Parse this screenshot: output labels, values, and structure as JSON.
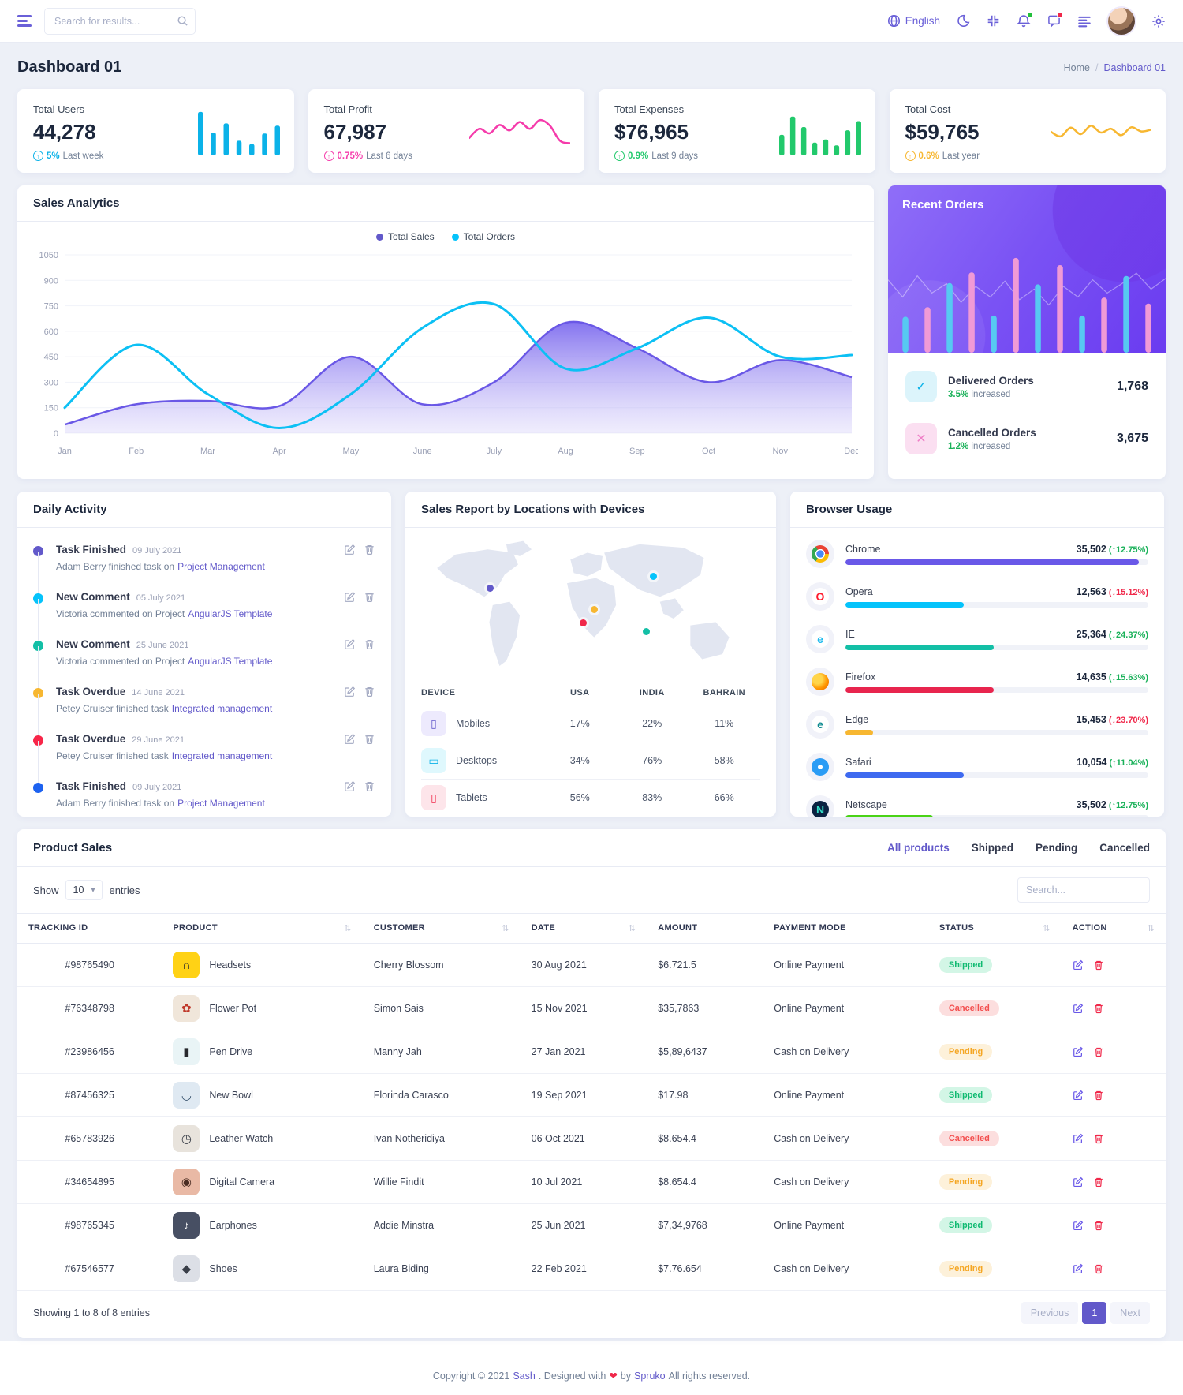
{
  "topbar": {
    "search_placeholder": "Search for results...",
    "language": "English"
  },
  "page_header": {
    "title": "Dashboard 01",
    "breadcrumb_home": "Home",
    "breadcrumb_sep": "/",
    "breadcrumb_current": "Dashboard 01"
  },
  "stat_cards": [
    {
      "label": "Total Users",
      "value": "44,278",
      "arrow": "↑",
      "delta": "5%",
      "note": "Last week",
      "color": "#0bb2e8",
      "chart_data": {
        "type": "bar",
        "values": [
          95,
          50,
          70,
          32,
          25,
          48,
          65
        ]
      }
    },
    {
      "label": "Total Profit",
      "value": "67,987",
      "arrow": "↑",
      "delta": "0.75%",
      "note": "Last 6 days",
      "color": "#f53bab",
      "chart_data": {
        "type": "line",
        "values": [
          38,
          62,
          50,
          72,
          58,
          80,
          62,
          85,
          70,
          30,
          24
        ]
      }
    },
    {
      "label": "Total Expenses",
      "value": "$76,965",
      "arrow": "↑",
      "delta": "0.9%",
      "note": "Last 9 days",
      "color": "#22c96c",
      "chart_data": {
        "type": "bar",
        "values": [
          45,
          85,
          62,
          28,
          35,
          22,
          55,
          75
        ]
      }
    },
    {
      "label": "Total Cost",
      "value": "$59,765",
      "arrow": "↑",
      "delta": "0.6%",
      "note": "Last year",
      "color": "#f7b731",
      "chart_data": {
        "type": "line",
        "values": [
          55,
          42,
          65,
          48,
          70,
          52,
          62,
          45,
          66,
          55,
          60
        ]
      }
    }
  ],
  "sales_analytics": {
    "title": "Sales Analytics",
    "legend": [
      {
        "label": "Total Sales",
        "color": "#6259ca"
      },
      {
        "label": "Total Orders",
        "color": "#05c3fb"
      }
    ],
    "chart_data": {
      "type": "area",
      "categories": [
        "Jan",
        "Feb",
        "Mar",
        "Apr",
        "May",
        "June",
        "July",
        "Aug",
        "Sep",
        "Oct",
        "Nov",
        "Dec"
      ],
      "series": [
        {
          "name": "Total Sales",
          "color": "#6a58e6",
          "values": [
            50,
            170,
            190,
            160,
            450,
            170,
            300,
            650,
            500,
            300,
            430,
            330
          ]
        },
        {
          "name": "Total Orders",
          "color": "#0cc0f4",
          "values": [
            150,
            520,
            230,
            30,
            230,
            620,
            760,
            380,
            500,
            680,
            450,
            460
          ]
        }
      ],
      "ylim": [
        0,
        1050
      ],
      "yticks": [
        1050,
        900,
        750,
        600,
        450,
        300,
        150,
        0
      ]
    }
  },
  "recent_orders": {
    "title": "Recent Orders",
    "chart_data": {
      "type": "bar",
      "colors": [
        "#57c9f2",
        "#f09ad6"
      ],
      "values": [
        30,
        38,
        58,
        67,
        31,
        79,
        57,
        73,
        31,
        46,
        64,
        41
      ],
      "trend": [
        45,
        58,
        42,
        55,
        48,
        62,
        50,
        58,
        46,
        60,
        52,
        64,
        50,
        58,
        45,
        55,
        48,
        40,
        52,
        44
      ]
    },
    "items": [
      {
        "label": "Delivered Orders",
        "pct": "3.5%",
        "note": "increased",
        "value": "1,768",
        "tile_bg": "#dcf4fb",
        "mark_color": "#0bb2e8",
        "pct_color": "#19b159",
        "mark": "✓"
      },
      {
        "label": "Cancelled Orders",
        "pct": "1.2%",
        "note": "increased",
        "value": "3,675",
        "tile_bg": "#fbdff1",
        "mark_color": "#ef7fc7",
        "pct_color": "#19b159",
        "mark": "✕"
      }
    ]
  },
  "daily_activity": {
    "title": "Daily Activity",
    "items": [
      {
        "dot": "#6259ca",
        "title": "Task Finished",
        "date": "09 July 2021",
        "text": "Adam Berry finished task on",
        "link": "Project Management"
      },
      {
        "dot": "#05c3fb",
        "title": "New Comment",
        "date": "05 July 2021",
        "text": "Victoria commented on Project",
        "link": "AngularJS Template"
      },
      {
        "dot": "#13bfa6",
        "title": "New Comment",
        "date": "25 June 2021",
        "text": "Victoria commented on Project",
        "link": "AngularJS Template"
      },
      {
        "dot": "#f7b731",
        "title": "Task Overdue",
        "date": "14 June 2021",
        "text": "Petey Cruiser finished task",
        "link": "Integrated management"
      },
      {
        "dot": "#f82649",
        "title": "Task Overdue",
        "date": "29 June 2021",
        "text": "Petey Cruiser finished task",
        "link": "Integrated management"
      },
      {
        "dot": "#1d62f0",
        "title": "Task Finished",
        "date": "09 July 2021",
        "text": "Adam Berry finished task on",
        "link": "Project Management"
      }
    ]
  },
  "sales_report": {
    "title": "Sales Report by Locations with Devices",
    "map_dots": [
      {
        "color": "#6259ca",
        "x": "22%",
        "y": "38%"
      },
      {
        "color": "#f7b731",
        "x": "50%",
        "y": "52%"
      },
      {
        "color": "#f0284a",
        "x": "47%",
        "y": "61%"
      },
      {
        "color": "#05c3fb",
        "x": "66%",
        "y": "30%"
      },
      {
        "color": "#13bfa6",
        "x": "64%",
        "y": "67%"
      }
    ],
    "table": {
      "headers": {
        "device": "DEVICE",
        "usa": "USA",
        "india": "INDIA",
        "bahrain": "BAHRAIN"
      },
      "rows": [
        {
          "device": "Mobiles",
          "icon": "mobile-icon",
          "tile_bg": "#edeafd",
          "glyph": "▯",
          "glyph_color": "#6259ca",
          "usa": "17%",
          "india": "22%",
          "bahrain": "11%"
        },
        {
          "device": "Desktops",
          "icon": "desktop-icon",
          "tile_bg": "#dff8fd",
          "glyph": "▭",
          "glyph_color": "#0bb2e8",
          "usa": "34%",
          "india": "76%",
          "bahrain": "58%"
        },
        {
          "device": "Tablets",
          "icon": "tablet-icon",
          "tile_bg": "#fde5ea",
          "glyph": "▯",
          "glyph_color": "#f0284a",
          "usa": "56%",
          "india": "83%",
          "bahrain": "66%"
        }
      ]
    }
  },
  "browser_usage": {
    "title": "Browser Usage",
    "rows": [
      {
        "name": "Chrome",
        "value": "35,502",
        "delta": "(↑12.75%)",
        "delta_color": "#19b159",
        "bar_color": "#6958e8",
        "bar_pct": "97%",
        "icon_bg": "radial-gradient(circle at 50% 50%, #4a8af4 0 30%, #ffffff 31% 39%, rgba(0,0,0,0) 40%), conic-gradient(from -30deg, #ea4335 0 120deg, #fbbc05 0 240deg, #34a853 0 360deg)",
        "icon_char": "",
        "icon_char_color": "#ffffff"
      },
      {
        "name": "Opera",
        "value": "12,563",
        "delta": "(↓15.12%)",
        "delta_color": "#f0284a",
        "bar_color": "#05c3fb",
        "bar_pct": "39%",
        "icon_bg": "#ffffff",
        "icon_char": "O",
        "icon_char_color": "#ff1b2d"
      },
      {
        "name": "IE",
        "value": "25,364",
        "delta": "(↓24.37%)",
        "delta_color": "#19b159",
        "bar_color": "#13bfa6",
        "bar_pct": "49%",
        "icon_bg": "#ffffff",
        "icon_char": "e",
        "icon_char_color": "#1ebbee"
      },
      {
        "name": "Firefox",
        "value": "14,635",
        "delta": "(↓15.63%)",
        "delta_color": "#19b159",
        "bar_color": "#e8254e",
        "bar_pct": "49%",
        "icon_bg": "radial-gradient(circle at 35% 35%, #ffd54b 0 30%, #ff9500 60%, #e66000 100%)",
        "icon_char": "",
        "icon_char_color": "#ffffff"
      },
      {
        "name": "Edge",
        "value": "15,453",
        "delta": "(↓23.70%)",
        "delta_color": "#f0284a",
        "bar_color": "#f7b731",
        "bar_pct": "9%",
        "icon_bg": "#ffffff",
        "icon_char": "e",
        "icon_char_color": "#0c8a8f"
      },
      {
        "name": "Safari",
        "value": "10,054",
        "delta": "(↑11.04%)",
        "delta_color": "#19b159",
        "bar_color": "#3e6af0",
        "bar_pct": "39%",
        "icon_bg": "radial-gradient(circle at 50% 50%, #ffffff 0 18%, #2a9cf5 19% 100%)",
        "icon_char": "",
        "icon_char_color": "#ffffff"
      },
      {
        "name": "Netscape",
        "value": "35,502",
        "delta": "(↑12.75%)",
        "delta_color": "#19b159",
        "bar_color": "#4ad316",
        "bar_pct": "29%",
        "icon_bg": "#0b2342",
        "icon_char": "N",
        "icon_char_color": "#35e0c8"
      }
    ]
  },
  "product_sales": {
    "title": "Product Sales",
    "tabs": [
      {
        "label": "All products",
        "color": "#6259ca"
      },
      {
        "label": "Shipped",
        "color": "#343a4e"
      },
      {
        "label": "Pending",
        "color": "#343a4e"
      },
      {
        "label": "Cancelled",
        "color": "#343a4e"
      }
    ],
    "show": {
      "label": "Show",
      "value": "10",
      "suffix": "entries"
    },
    "search_placeholder": "Search...",
    "table": {
      "headers": [
        {
          "label": "TRACKING ID",
          "sort": false
        },
        {
          "label": "PRODUCT",
          "sort": true
        },
        {
          "label": "CUSTOMER",
          "sort": true
        },
        {
          "label": "DATE",
          "sort": true
        },
        {
          "label": "AMOUNT",
          "sort": false
        },
        {
          "label": "PAYMENT MODE",
          "sort": false
        },
        {
          "label": "STATUS",
          "sort": true
        },
        {
          "label": "ACTION",
          "sort": true
        }
      ],
      "rows": [
        {
          "id": "#98765490",
          "product": "Headsets",
          "tile_bg": "#ffd215",
          "glyph": "∩",
          "glyph_color": "#27282d",
          "customer": "Cherry Blossom",
          "date": "30 Aug 2021",
          "amount": "$6.721.5",
          "payment": "Online Payment",
          "status": "Shipped",
          "status_bg": "#d3f6e6",
          "status_color": "#0fba71"
        },
        {
          "id": "#76348798",
          "product": "Flower Pot",
          "tile_bg": "#f0e6da",
          "glyph": "✿",
          "glyph_color": "#c0392b",
          "customer": "Simon Sais",
          "date": "15 Nov 2021",
          "amount": "$35,7863",
          "payment": "Online Payment",
          "status": "Cancelled",
          "status_bg": "#fcdede",
          "status_color": "#f34f4f"
        },
        {
          "id": "#23986456",
          "product": "Pen Drive",
          "tile_bg": "#e9f4f6",
          "glyph": "▮",
          "glyph_color": "#27282d",
          "customer": "Manny Jah",
          "date": "27 Jan 2021",
          "amount": "$5,89,6437",
          "payment": "Cash on Delivery",
          "status": "Pending",
          "status_bg": "#fdf1da",
          "status_color": "#f5a623"
        },
        {
          "id": "#87456325",
          "product": "New Bowl",
          "tile_bg": "#dfe9f2",
          "glyph": "◡",
          "glyph_color": "#35506b",
          "customer": "Florinda Carasco",
          "date": "19 Sep 2021",
          "amount": "$17.98",
          "payment": "Online Payment",
          "status": "Shipped",
          "status_bg": "#d3f6e6",
          "status_color": "#0fba71"
        },
        {
          "id": "#65783926",
          "product": "Leather Watch",
          "tile_bg": "#e8e3dc",
          "glyph": "◷",
          "glyph_color": "#3a3f49",
          "customer": "Ivan Notheridiya",
          "date": "06 Oct 2021",
          "amount": "$8.654.4",
          "payment": "Cash on Delivery",
          "status": "Cancelled",
          "status_bg": "#fcdede",
          "status_color": "#f34f4f"
        },
        {
          "id": "#34654895",
          "product": "Digital Camera",
          "tile_bg": "#e9b9a5",
          "glyph": "◉",
          "glyph_color": "#4a2c22",
          "customer": "Willie Findit",
          "date": "10 Jul 2021",
          "amount": "$8.654.4",
          "payment": "Cash on Delivery",
          "status": "Pending",
          "status_bg": "#fdf1da",
          "status_color": "#f5a623"
        },
        {
          "id": "#98765345",
          "product": "Earphones",
          "tile_bg": "#474f63",
          "glyph": "♪",
          "glyph_color": "#ffffff",
          "customer": "Addie Minstra",
          "date": "25 Jun 2021",
          "amount": "$7,34,9768",
          "payment": "Online Payment",
          "status": "Shipped",
          "status_bg": "#d3f6e6",
          "status_color": "#0fba71"
        },
        {
          "id": "#67546577",
          "product": "Shoes",
          "tile_bg": "#dcdfe6",
          "glyph": "◆",
          "glyph_color": "#3a3f49",
          "customer": "Laura Biding",
          "date": "22 Feb 2021",
          "amount": "$7.76.654",
          "payment": "Cash on Delivery",
          "status": "Pending",
          "status_bg": "#fdf1da",
          "status_color": "#f5a623"
        }
      ]
    },
    "footer_text": "Showing 1 to 8 of 8 entries",
    "pagination": {
      "prev": "Previous",
      "page": "1",
      "next": "Next"
    }
  },
  "footer": {
    "prefix": "Copyright © 2021",
    "brand": "Sash",
    "middle": ". Designed with",
    "heart": "❤",
    "by": "by",
    "designer": "Spruko",
    "suffix": "All rights reserved."
  }
}
